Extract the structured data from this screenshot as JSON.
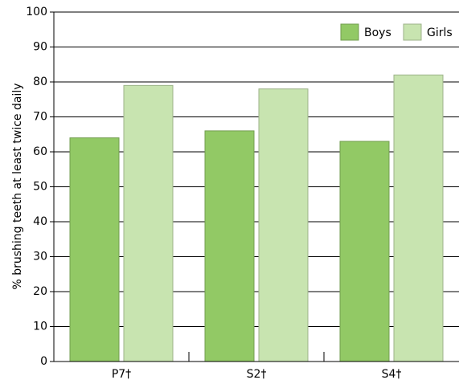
{
  "chart_data": {
    "type": "bar",
    "y_label": "% brushing teeth at least twice daily",
    "categories": [
      "P7†",
      "S2†",
      "S4†"
    ],
    "series": [
      {
        "name": "Boys",
        "color": "#92c965",
        "values": [
          64,
          66,
          63
        ]
      },
      {
        "name": "Girls",
        "color": "#c8e4b0",
        "values": [
          79,
          78,
          82
        ]
      }
    ],
    "ylim": [
      0,
      100
    ],
    "yticks": [
      0,
      10,
      20,
      30,
      40,
      50,
      60,
      70,
      80,
      90,
      100
    ],
    "grid": true,
    "legend": "top-right"
  }
}
